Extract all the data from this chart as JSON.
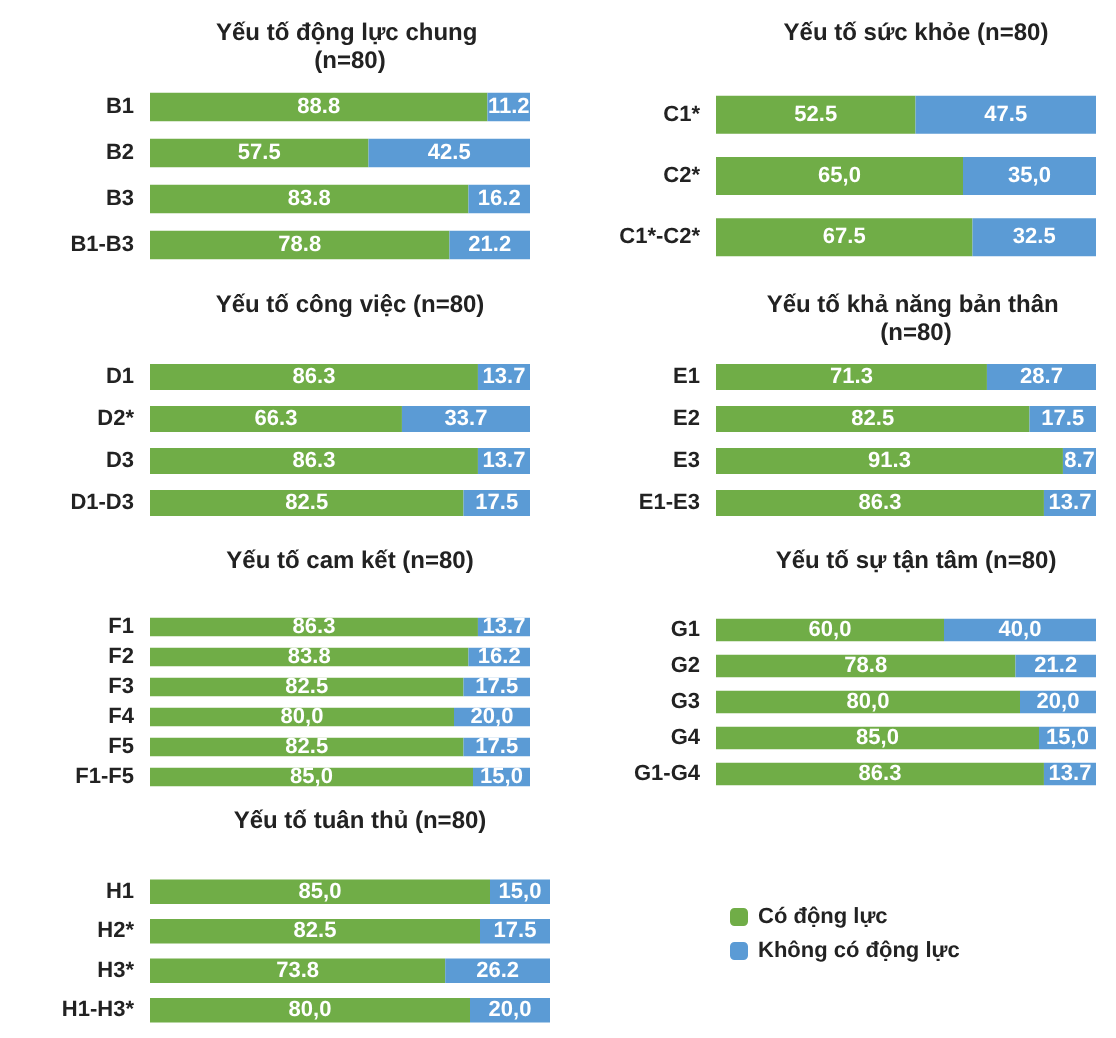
{
  "chart_data": [
    {
      "type": "bar",
      "orientation": "horizontal",
      "stacked": true,
      "title": "Yếu tố động lực chung (n=80)",
      "categories": [
        "B1",
        "B2",
        "B3",
        "B1-B3"
      ],
      "xlim": [
        0,
        100
      ],
      "tick_labels": "y",
      "legend": false,
      "series": [
        {
          "color": "#70ad47",
          "values": [
            88.8,
            57.5,
            83.8,
            78.8
          ],
          "value_labels": [
            "88.8",
            "57.5",
            "83.8",
            "78.8"
          ]
        },
        {
          "color": "#5b9bd5",
          "values": [
            11.2,
            42.5,
            16.2,
            21.2
          ],
          "value_labels": [
            "11.2",
            "42.5",
            "16.2",
            "21.2"
          ]
        }
      ]
    },
    {
      "type": "bar",
      "orientation": "horizontal",
      "stacked": true,
      "title": "Yếu tố sức khỏe (n=80)",
      "categories": [
        "C1*",
        "C2*",
        "C1*-C2*"
      ],
      "xlim": [
        0,
        100
      ],
      "tick_labels": "y",
      "legend": false,
      "series": [
        {
          "color": "#70ad47",
          "values": [
            52.5,
            65.0,
            67.5
          ],
          "value_labels": [
            "52.5",
            "65,0",
            "67.5"
          ]
        },
        {
          "color": "#5b9bd5",
          "values": [
            47.5,
            35.0,
            32.5
          ],
          "value_labels": [
            "47.5",
            "35,0",
            "32.5"
          ]
        }
      ]
    },
    {
      "type": "bar",
      "orientation": "horizontal",
      "stacked": true,
      "title": "Yếu tố công việc (n=80)",
      "categories": [
        "D1",
        "D2*",
        "D3",
        "D1-D3"
      ],
      "xlim": [
        0,
        100
      ],
      "tick_labels": "y",
      "legend": false,
      "series": [
        {
          "color": "#70ad47",
          "values": [
            86.3,
            66.3,
            86.3,
            82.5
          ],
          "value_labels": [
            "86.3",
            "66.3",
            "86.3",
            "82.5"
          ]
        },
        {
          "color": "#5b9bd5",
          "values": [
            13.7,
            33.7,
            13.7,
            17.5
          ],
          "value_labels": [
            "13.7",
            "33.7",
            "13.7",
            "17.5"
          ]
        }
      ]
    },
    {
      "type": "bar",
      "orientation": "horizontal",
      "stacked": true,
      "title": "Yếu tố khả năng bản thân (n=80)",
      "categories": [
        "E1",
        "E2",
        "E3",
        "E1-E3"
      ],
      "xlim": [
        0,
        100
      ],
      "tick_labels": "y",
      "legend": false,
      "series": [
        {
          "color": "#70ad47",
          "values": [
            71.3,
            82.5,
            91.3,
            86.3
          ],
          "value_labels": [
            "71.3",
            "82.5",
            "91.3",
            "86.3"
          ]
        },
        {
          "color": "#5b9bd5",
          "values": [
            28.7,
            17.5,
            8.7,
            13.7
          ],
          "value_labels": [
            "28.7",
            "17.5",
            "8.7",
            "13.7"
          ]
        }
      ]
    },
    {
      "type": "bar",
      "orientation": "horizontal",
      "stacked": true,
      "title": "Yếu tố cam kết (n=80)",
      "categories": [
        "F1",
        "F2",
        "F3",
        "F4",
        "F5",
        "F1-F5"
      ],
      "xlim": [
        0,
        100
      ],
      "tick_labels": "y",
      "legend": false,
      "series": [
        {
          "color": "#70ad47",
          "values": [
            86.3,
            83.8,
            82.5,
            80.0,
            82.5,
            85.0
          ],
          "value_labels": [
            "86.3",
            "83.8",
            "82.5",
            "80,0",
            "82.5",
            "85,0"
          ]
        },
        {
          "color": "#5b9bd5",
          "values": [
            13.7,
            16.2,
            17.5,
            20.0,
            17.5,
            15.0
          ],
          "value_labels": [
            "13.7",
            "16.2",
            "17.5",
            "20,0",
            "17.5",
            "15,0"
          ]
        }
      ]
    },
    {
      "type": "bar",
      "orientation": "horizontal",
      "stacked": true,
      "title": "Yếu tố sự tận tâm (n=80)",
      "categories": [
        "G1",
        "G2",
        "G3",
        "G4",
        "G1-G4"
      ],
      "xlim": [
        0,
        100
      ],
      "tick_labels": "y",
      "legend": false,
      "series": [
        {
          "color": "#70ad47",
          "values": [
            60.0,
            78.8,
            80.0,
            85.0,
            86.3
          ],
          "value_labels": [
            "60,0",
            "78.8",
            "80,0",
            "85,0",
            "86.3"
          ]
        },
        {
          "color": "#5b9bd5",
          "values": [
            40.0,
            21.2,
            20.0,
            15.0,
            13.7
          ],
          "value_labels": [
            "40,0",
            "21.2",
            "20,0",
            "15,0",
            "13.7"
          ]
        }
      ]
    },
    {
      "type": "bar",
      "orientation": "horizontal",
      "stacked": true,
      "title": "Yếu tố tuân thủ (n=80)",
      "categories": [
        "H1",
        "H2*",
        "H3*",
        "H1-H3*"
      ],
      "xlim": [
        0,
        100
      ],
      "tick_labels": "y",
      "legend": "right",
      "series": [
        {
          "name": "Có động lực",
          "color": "#70ad47",
          "values": [
            85.0,
            82.5,
            73.8,
            80.0
          ],
          "value_labels": [
            "85,0",
            "82.5",
            "73.8",
            "80,0"
          ]
        },
        {
          "name": "Không có động lực",
          "color": "#5b9bd5",
          "values": [
            15.0,
            17.5,
            26.2,
            20.0
          ],
          "value_labels": [
            "15,0",
            "17.5",
            "26.2",
            "20,0"
          ]
        }
      ]
    }
  ]
}
